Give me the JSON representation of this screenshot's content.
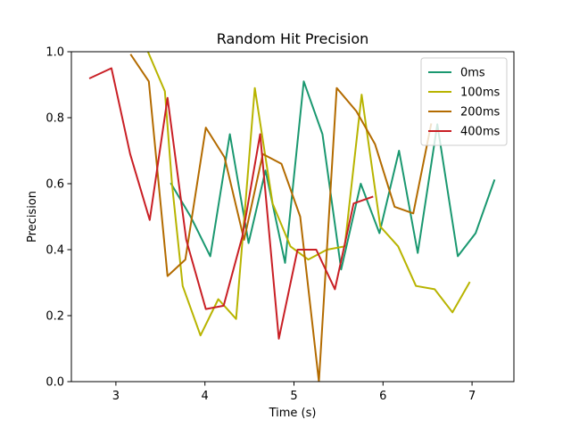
{
  "chart_data": {
    "type": "line",
    "title": "Random Hit Precision",
    "xlabel": "Time (s)",
    "ylabel": "Precision",
    "xlim": [
      2.5,
      7.47
    ],
    "ylim": [
      0.0,
      1.0
    ],
    "xticks": [
      3,
      4,
      5,
      6,
      7
    ],
    "yticks": [
      0.0,
      0.2,
      0.4,
      0.6,
      0.8,
      1.0
    ],
    "grid": false,
    "legend_position": "top-right",
    "series": [
      {
        "name": "0ms",
        "color": "#1a9870",
        "x": [
          3.62,
          3.84,
          4.06,
          4.28,
          4.49,
          4.68,
          4.9,
          5.11,
          5.32,
          5.53,
          5.75,
          5.96,
          6.18,
          6.39,
          6.61,
          6.84,
          7.04,
          7.25
        ],
        "y": [
          0.6,
          0.5,
          0.38,
          0.75,
          0.42,
          0.64,
          0.36,
          0.91,
          0.75,
          0.34,
          0.6,
          0.45,
          0.7,
          0.39,
          0.78,
          0.38,
          0.45,
          0.61
        ]
      },
      {
        "name": "100ms",
        "color": "#b8b400",
        "x": [
          3.36,
          3.55,
          3.63,
          3.75,
          3.95,
          4.15,
          4.35,
          4.56,
          4.76,
          4.96,
          5.16,
          5.37,
          5.57,
          5.76,
          5.97,
          6.17,
          6.37,
          6.58,
          6.78,
          6.97
        ],
        "y": [
          1.0,
          0.88,
          0.6,
          0.29,
          0.14,
          0.25,
          0.19,
          0.89,
          0.54,
          0.41,
          0.37,
          0.4,
          0.41,
          0.87,
          0.47,
          0.41,
          0.29,
          0.28,
          0.21,
          0.3
        ]
      },
      {
        "name": "200ms",
        "color": "#b36b00",
        "x": [
          3.17,
          3.37,
          3.58,
          3.78,
          4.01,
          4.22,
          4.44,
          4.65,
          4.86,
          5.07,
          5.28,
          5.48,
          5.7,
          5.91,
          6.13,
          6.34,
          6.54
        ],
        "y": [
          0.99,
          0.91,
          0.32,
          0.37,
          0.77,
          0.68,
          0.43,
          0.69,
          0.66,
          0.5,
          0.0,
          0.89,
          0.82,
          0.72,
          0.53,
          0.51,
          0.78
        ]
      },
      {
        "name": "400ms",
        "color": "#c91f25",
        "x": [
          2.71,
          2.95,
          3.16,
          3.38,
          3.58,
          3.79,
          4.01,
          4.21,
          4.42,
          4.62,
          4.83,
          5.04,
          5.25,
          5.46,
          5.67,
          5.88
        ],
        "y": [
          0.92,
          0.95,
          0.69,
          0.49,
          0.86,
          0.43,
          0.22,
          0.23,
          0.44,
          0.75,
          0.13,
          0.4,
          0.4,
          0.28,
          0.54,
          0.56
        ]
      }
    ]
  }
}
